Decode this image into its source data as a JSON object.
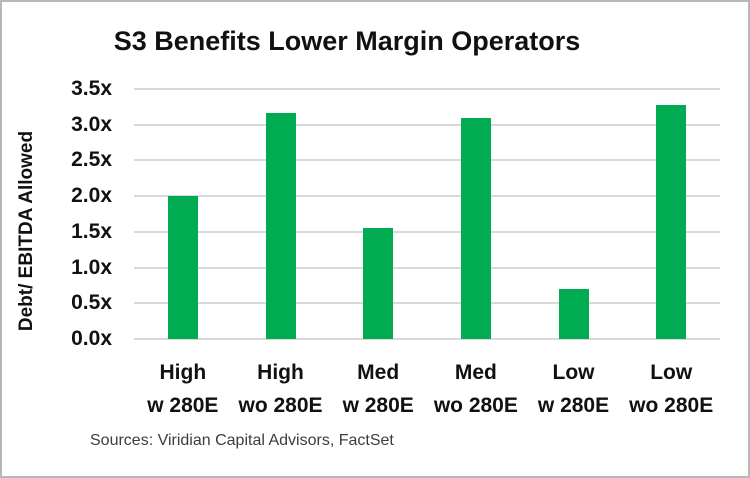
{
  "source": "Sources: Viridian Capital Advisors, FactSet",
  "colors": {
    "bar": "#00AB51",
    "gridline": "#D9D9D9",
    "frame_border": "#B7B7B7",
    "text": "#111111",
    "source_text": "#3D3D3D",
    "background": "#FFFFFF"
  },
  "chart_data": {
    "type": "bar",
    "title": "S3 Benefits Lower Margin Operators",
    "xlabel": "",
    "ylabel": "Debt/ EBITDA Allowed",
    "categories": [
      {
        "line1": "High",
        "line2": "w 280E"
      },
      {
        "line1": "High",
        "line2": "wo 280E"
      },
      {
        "line1": "Med",
        "line2": "w 280E"
      },
      {
        "line1": "Med",
        "line2": "wo 280E"
      },
      {
        "line1": "Low",
        "line2": "w 280E"
      },
      {
        "line1": "Low",
        "line2": "wo 280E"
      }
    ],
    "values": [
      2.0,
      3.17,
      1.55,
      3.1,
      0.7,
      3.28
    ],
    "ylim": [
      0,
      3.5
    ],
    "yticks": [
      0.0,
      0.5,
      1.0,
      1.5,
      2.0,
      2.5,
      3.0,
      3.5
    ],
    "ytick_labels": [
      "0.0x",
      "0.5x",
      "1.0x",
      "1.5x",
      "2.0x",
      "2.5x",
      "3.0x",
      "3.5x"
    ],
    "grid": true,
    "legend": false,
    "bar_color": "#00AB51",
    "source_note": "Sources: Viridian Capital Advisors, FactSet"
  }
}
